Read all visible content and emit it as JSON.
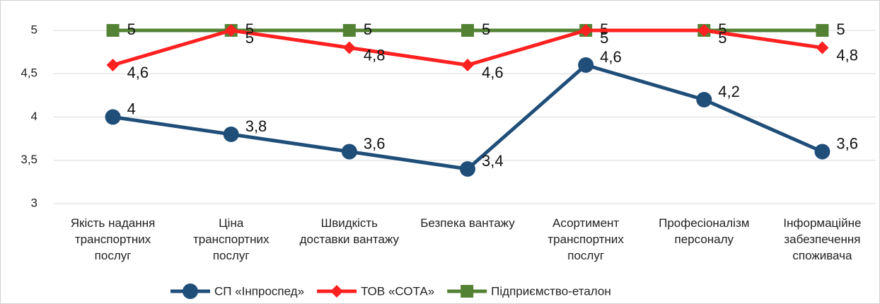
{
  "chart_data": {
    "type": "line",
    "categories": [
      "Якість надання\nтранспортних\nпослуг",
      "Ціна\nтранспортних\nпослуг",
      "Швидкість\nдоставки вантажу",
      "Безпека вантажу",
      "Асортимент\nтранспортних\nпослуг",
      "Професіоналізм\nперсоналу",
      "Інформаційне\nзабезпечення\nспоживача"
    ],
    "series": [
      {
        "name": "СП «Інпроспед»",
        "color": "#1f4e79",
        "marker": "circle",
        "values": [
          4,
          3.8,
          3.6,
          3.4,
          4.6,
          4.2,
          3.6
        ],
        "value_labels": [
          "4",
          "3,8",
          "3,6",
          "3,4",
          "4,6",
          "4,2",
          "3,6"
        ]
      },
      {
        "name": "ТОВ «СОТА»",
        "color": "#ff2020",
        "marker": "diamond",
        "values": [
          4.6,
          5,
          4.8,
          4.6,
          5,
          5,
          4.8
        ],
        "value_labels": [
          "4,6",
          "5",
          "4,8",
          "4,6",
          "5",
          "5",
          "4,8"
        ]
      },
      {
        "name": "Підприємство-еталон",
        "color": "#548235",
        "marker": "square",
        "values": [
          5,
          5,
          5,
          5,
          5,
          5,
          5
        ],
        "value_labels": [
          "5",
          "5",
          "5",
          "5",
          "5",
          "5",
          "5"
        ]
      }
    ],
    "ylim": [
      3,
      5
    ],
    "yticks": [
      3,
      {
        "value": 3.5,
        "label": "3,5"
      },
      4,
      {
        "value": 4.5,
        "label": "4,5"
      },
      5
    ],
    "grid": true,
    "legend": "bottom"
  }
}
